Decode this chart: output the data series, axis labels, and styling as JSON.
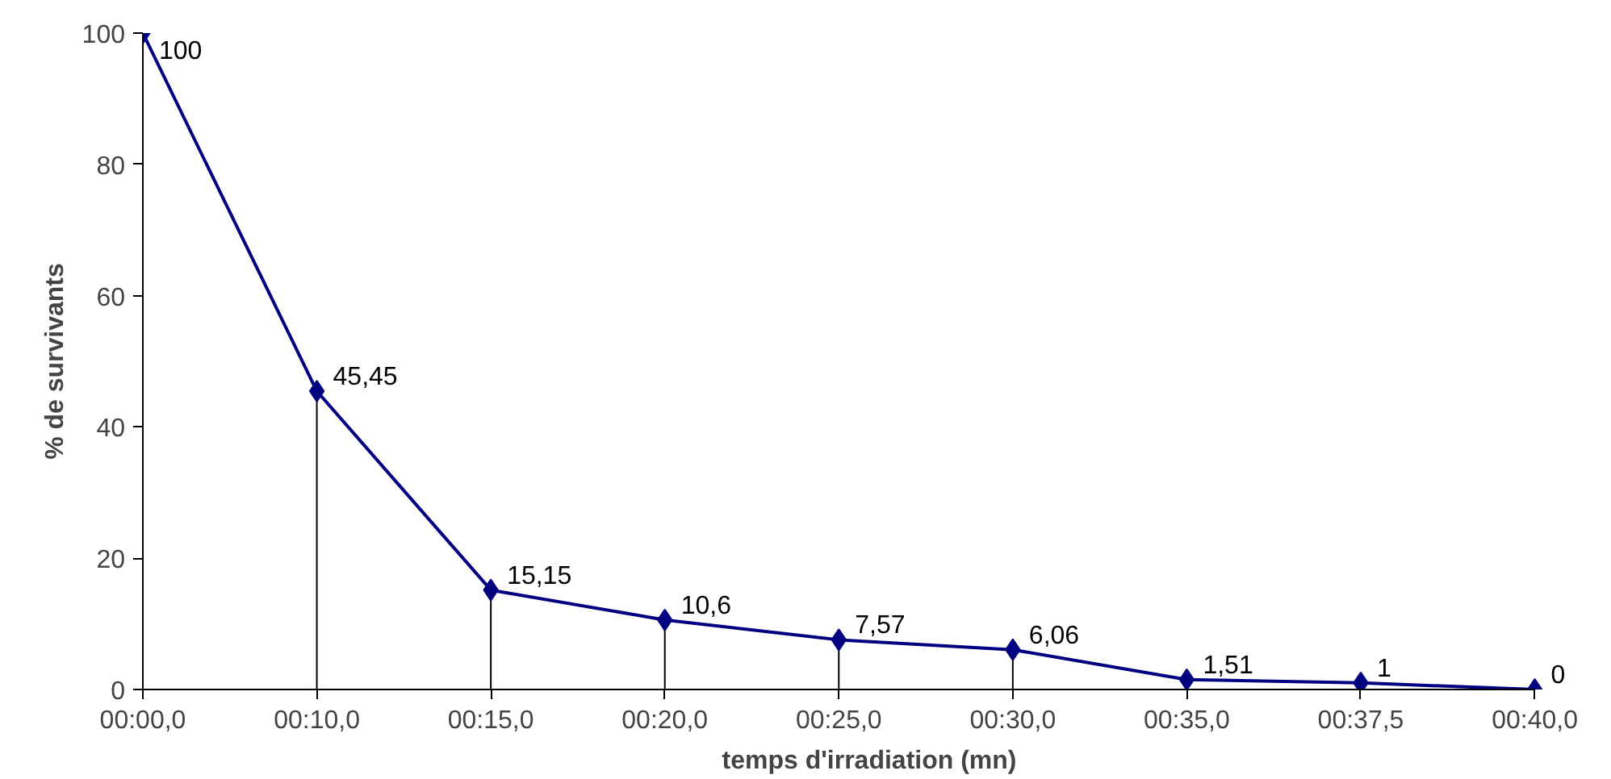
{
  "chart_data": {
    "type": "line",
    "xlabel": "temps d'irradiation (mn)",
    "ylabel": "% de survivants",
    "categories": [
      "00:00,0",
      "00:10,0",
      "00:15,0",
      "00:20,0",
      "00:25,0",
      "00:30,0",
      "00:35,0",
      "00:37,5",
      "00:40,0"
    ],
    "series": [
      {
        "color": "#000080",
        "values": [
          100,
          45.45,
          15.15,
          10.6,
          7.57,
          6.06,
          1.51,
          1,
          0
        ],
        "value_labels": [
          "100",
          "45,45",
          "15,15",
          "10,6",
          "7,57",
          "6,06",
          "1,51",
          "1",
          "0"
        ]
      },
      {
        "type": "lollipop",
        "color": "#000080",
        "marker": "diamond",
        "values": [
          100,
          45.45,
          15.15,
          10.6,
          7.57,
          6.06,
          1.51,
          1,
          0
        ]
      }
    ],
    "ylim": [
      0,
      100
    ],
    "yticks": [
      0,
      20,
      40,
      60,
      80,
      100
    ],
    "grid": false,
    "line_style": "solid"
  }
}
